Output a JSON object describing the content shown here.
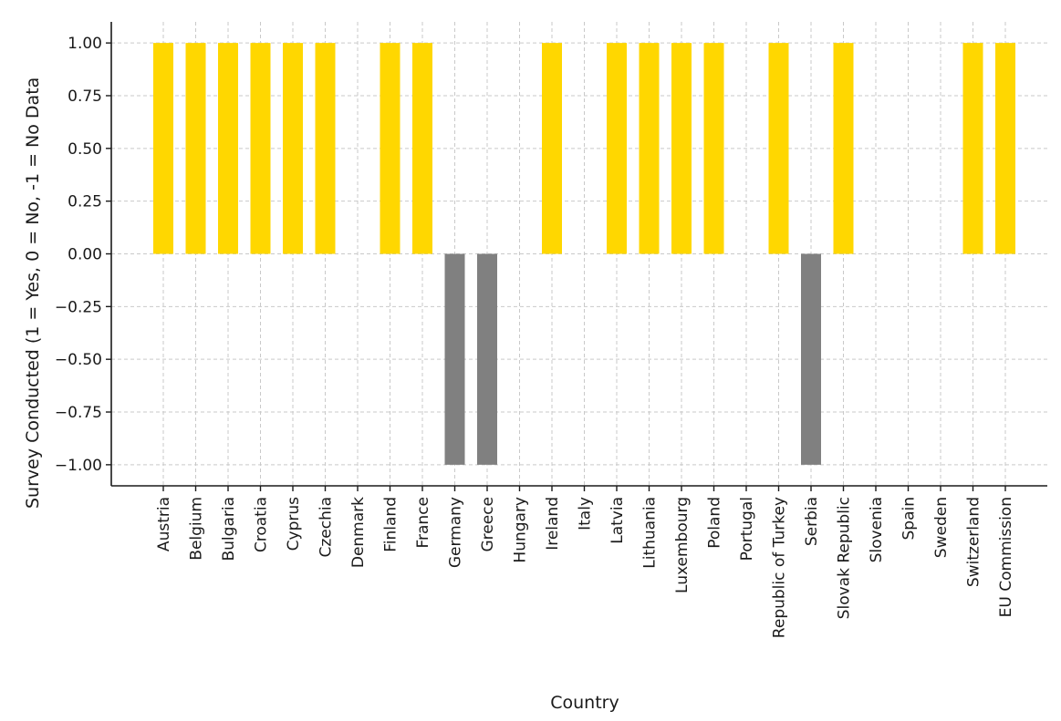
{
  "chart_data": {
    "type": "bar",
    "title": "",
    "xlabel": "Country",
    "ylabel": "Survey Conducted (1 = Yes, 0 = No, -1 = No Data",
    "ylim": [
      -1.1,
      1.1
    ],
    "yticks": [
      1.0,
      0.75,
      0.5,
      0.25,
      0.0,
      -0.25,
      -0.5,
      -0.75,
      -1.0
    ],
    "ytick_labels": [
      "1.00",
      "0.75",
      "0.50",
      "0.25",
      "0.00",
      "−0.25",
      "−0.50",
      "−0.75",
      "−1.00"
    ],
    "grid": true,
    "categories": [
      "Austria",
      "Belgium",
      "Bulgaria",
      "Croatia",
      "Cyprus",
      "Czechia",
      "Denmark",
      "Finland",
      "France",
      "Germany",
      "Greece",
      "Hungary",
      "Ireland",
      "Italy",
      "Latvia",
      "Lithuania",
      "Luxembourg",
      "Poland",
      "Portugal",
      "Republic of Turkey",
      "Serbia",
      "Slovak Republic",
      "Slovenia",
      "Spain",
      "Sweden",
      "Switzerland",
      "EU Commission"
    ],
    "values": [
      1,
      1,
      1,
      1,
      1,
      1,
      0,
      1,
      1,
      -1,
      -1,
      0,
      1,
      0,
      1,
      1,
      1,
      1,
      0,
      1,
      -1,
      1,
      0,
      0,
      0,
      1,
      1
    ],
    "colors": {
      "positive": "#FFD700",
      "negative": "#808080"
    }
  }
}
